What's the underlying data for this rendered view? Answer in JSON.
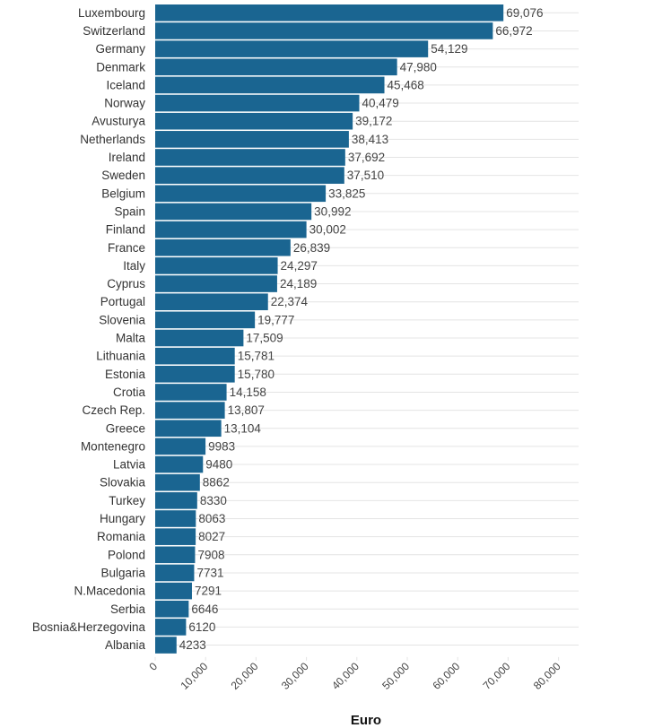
{
  "chart_data": {
    "type": "bar",
    "orientation": "horizontal",
    "categories": [
      "Luxembourg",
      "Switzerland",
      "Germany",
      "Denmark",
      "Iceland",
      "Norway",
      "Avusturya",
      "Netherlands",
      "Ireland",
      "Sweden",
      "Belgium",
      "Spain",
      "Finland",
      "France",
      "Italy",
      "Cyprus",
      "Portugal",
      "Slovenia",
      "Malta",
      "Lithuania",
      "Estonia",
      "Crotia",
      "Czech Rep.",
      "Greece",
      "Montenegro",
      "Latvia",
      "Slovakia",
      "Turkey",
      "Hungary",
      "Romania",
      "Polond",
      "Bulgaria",
      "N.Macedonia",
      "Serbia",
      "Bosnia&Herzegovina",
      "Albania"
    ],
    "values": [
      69076,
      66972,
      54129,
      47980,
      45468,
      40479,
      39172,
      38413,
      37692,
      37510,
      33825,
      30992,
      30002,
      26839,
      24297,
      24189,
      22374,
      19777,
      17509,
      15781,
      15780,
      14158,
      13807,
      13104,
      9983,
      9480,
      8862,
      8330,
      8063,
      8027,
      7908,
      7731,
      7291,
      6646,
      6120,
      4233
    ],
    "value_labels": [
      "69,076",
      "66,972",
      "54,129",
      "47,980",
      "45,468",
      "40,479",
      "39,172",
      "38,413",
      "37,692",
      "37,510",
      "33,825",
      "30,992",
      "30,002",
      "26,839",
      "24,297",
      "24,189",
      "22,374",
      "19,777",
      "17,509",
      "15,781",
      "15,780",
      "14,158",
      "13,807",
      "13,104",
      "9983",
      "9480",
      "8862",
      "8330",
      "8063",
      "8027",
      "7908",
      "7731",
      "7291",
      "6646",
      "6120",
      "4233"
    ],
    "xlabel": "Euro",
    "ylabel": "",
    "xlim": [
      0,
      84000
    ],
    "ticks": [
      0,
      10000,
      20000,
      30000,
      40000,
      50000,
      60000,
      70000,
      80000
    ],
    "tick_labels": [
      "0",
      "10,000",
      "20,000",
      "30,000",
      "40,000",
      "50,000",
      "60,000",
      "70,000",
      "80,000"
    ],
    "grid": "horizontal-lines",
    "bar_color": "#1a6591"
  }
}
